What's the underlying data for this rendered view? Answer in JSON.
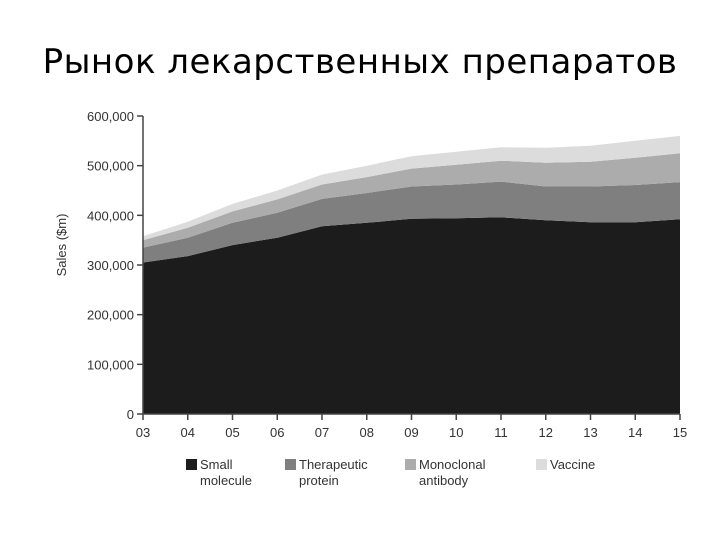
{
  "page": {
    "title": "Рынок лекарственных препаратов"
  },
  "chart_data": {
    "type": "area",
    "stacked": true,
    "ylabel": "Sales ($m)",
    "xlabel": "",
    "ylim": [
      0,
      600000
    ],
    "y_ticks": [
      "0",
      "100,000",
      "200,000",
      "300,000",
      "400,000",
      "500,000",
      "600,000"
    ],
    "y_tick_values": [
      0,
      100000,
      200000,
      300000,
      400000,
      500000,
      600000
    ],
    "x": [
      "03",
      "04",
      "05",
      "06",
      "07",
      "08",
      "09",
      "10",
      "11",
      "12",
      "13",
      "14",
      "15"
    ],
    "grid": false,
    "legend_position": "bottom",
    "series": [
      {
        "name": "Small molecule",
        "name_lines": [
          "Small",
          "molecule"
        ],
        "color": "#1c1c1c",
        "values": [
          305000,
          318000,
          340000,
          355000,
          378000,
          385000,
          393000,
          394000,
          396000,
          390000,
          386000,
          386000,
          392000
        ]
      },
      {
        "name": "Therapeutic protein",
        "name_lines": [
          "Therapeutic",
          "protein"
        ],
        "color": "#7f7f7f",
        "values": [
          30000,
          37000,
          45000,
          50000,
          55000,
          60000,
          65000,
          68000,
          72000,
          68000,
          72000,
          75000,
          75000
        ]
      },
      {
        "name": "Monoclonal antibody",
        "name_lines": [
          "Monoclonal",
          "antibody"
        ],
        "color": "#acacac",
        "values": [
          15000,
          20000,
          23000,
          27000,
          29000,
          32000,
          36000,
          40000,
          42000,
          48000,
          50000,
          55000,
          58000
        ]
      },
      {
        "name": "Vaccine",
        "name_lines": [
          "Vaccine"
        ],
        "color": "#dcdcdc",
        "values": [
          8000,
          12000,
          15000,
          18000,
          20000,
          23000,
          25000,
          26000,
          27000,
          30000,
          32000,
          34000,
          35000
        ]
      }
    ]
  }
}
